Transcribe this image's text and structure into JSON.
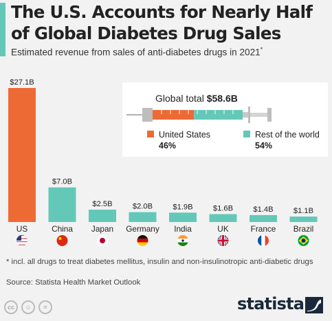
{
  "header": {
    "title": "The U.S. Accounts for Nearly Half of Global Diabetes Drug Sales",
    "subtitle": "Estimated revenue from sales of anti-diabetes drugs in 2021",
    "subtitle_mark": "*"
  },
  "chart_data": {
    "type": "bar",
    "title": "The U.S. Accounts for Nearly Half of Global Diabetes Drug Sales",
    "subtitle": "Estimated revenue from sales of anti-diabetes drugs in 2021*",
    "unit": "billion USD",
    "categories": [
      "US",
      "China",
      "Japan",
      "Germany",
      "India",
      "UK",
      "France",
      "Brazil"
    ],
    "values": [
      27.1,
      7.0,
      2.5,
      2.0,
      1.9,
      1.6,
      1.4,
      1.1
    ],
    "data_labels": [
      "$27.1B",
      "$7.0B",
      "$2.5B",
      "$2.0B",
      "$1.9B",
      "$1.6B",
      "$1.4B",
      "$1.1B"
    ],
    "bar_colors": [
      "#ee6a35",
      "#64c8b8",
      "#64c8b8",
      "#64c8b8",
      "#64c8b8",
      "#64c8b8",
      "#64c8b8",
      "#64c8b8"
    ],
    "flag_icons": [
      "us-flag-icon",
      "china-flag-icon",
      "japan-flag-icon",
      "germany-flag-icon",
      "india-flag-icon",
      "uk-flag-icon",
      "france-flag-icon",
      "brazil-flag-icon"
    ],
    "ylim": [
      0,
      27.1
    ],
    "grid": false,
    "inset": {
      "type": "stacked-bar",
      "label": "Global total",
      "total": "$58.6B",
      "segments": [
        {
          "name": "United States",
          "value": 46,
          "label": "46%",
          "color": "#ee6a35"
        },
        {
          "name": "Rest of the world",
          "value": 54,
          "label": "54%",
          "color": "#64c8b8"
        }
      ],
      "icon": "syringe-icon"
    }
  },
  "footer": {
    "footnote": "* incl. all drugs to treat diabetes mellitus, insulin and non-insulinotropic anti-diabetic drugs",
    "source": "Source: Statista Health Market Outlook",
    "brand": "statista",
    "license_icons": [
      "cc-icon",
      "attribution-icon",
      "no-derivatives-icon"
    ]
  },
  "colors": {
    "us": "#ee6a35",
    "rest": "#64c8b8",
    "background": "#f2f2f2",
    "title_accent": "#64c8b8",
    "brand": "#1a2a3a"
  }
}
